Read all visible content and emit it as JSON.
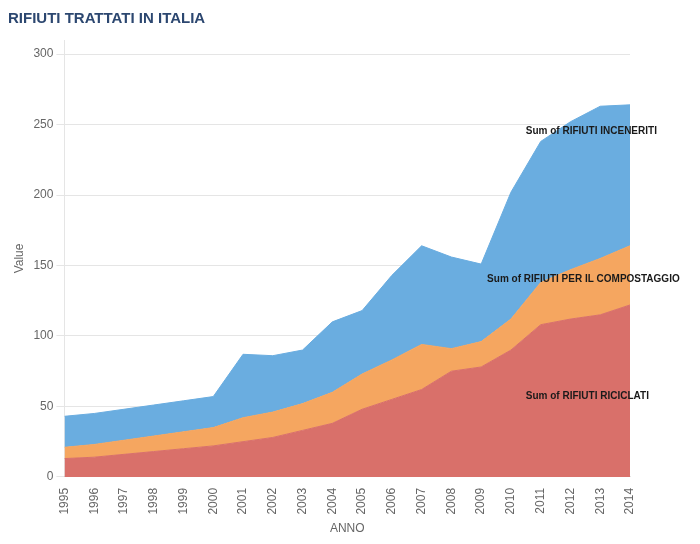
{
  "chart_data": {
    "type": "area",
    "title": "RIFIUTI TRATTATI IN ITALIA",
    "x_label": "ANNO",
    "y_label": "Value",
    "x": [
      1995,
      1996,
      1997,
      1998,
      1999,
      2000,
      2001,
      2002,
      2003,
      2004,
      2005,
      2006,
      2007,
      2008,
      2009,
      2010,
      2011,
      2012,
      2013,
      2014
    ],
    "series": [
      {
        "name": "Sum of RIFIUTI RICICLATI",
        "color": "#d9706a",
        "values": [
          13,
          14,
          16,
          18,
          20,
          22,
          25,
          28,
          33,
          38,
          48,
          55,
          62,
          75,
          78,
          90,
          108,
          112,
          115,
          122
        ]
      },
      {
        "name": "Sum of RIFIUTI PER IL COMPOSTAGGIO",
        "color": "#f5a660",
        "values": [
          8,
          9,
          10,
          11,
          12,
          13,
          17,
          18,
          19,
          22,
          25,
          28,
          32,
          16,
          18,
          22,
          30,
          35,
          40,
          42
        ]
      },
      {
        "name": "Sum of RIFIUTI INCENERITI",
        "color": "#6aade0",
        "values": [
          22,
          22,
          22,
          22,
          22,
          22,
          45,
          40,
          38,
          50,
          45,
          60,
          70,
          65,
          55,
          90,
          100,
          105,
          108,
          100
        ]
      }
    ],
    "stacked": true,
    "annotations": [
      {
        "text": "Sum of RIFIUTI INCENERITI",
        "x": 2010.5,
        "y": 245
      },
      {
        "text": "Sum of RIFIUTI PER IL COMPOSTAGGIO",
        "x": 2009.2,
        "y": 140
      },
      {
        "text": "Sum of RIFIUTI RICICLATI",
        "x": 2010.5,
        "y": 57
      }
    ],
    "xlim": [
      1995,
      2014
    ],
    "xticks": [
      1995,
      1996,
      1997,
      1998,
      1999,
      2000,
      2001,
      2002,
      2003,
      2004,
      2005,
      2006,
      2007,
      2008,
      2009,
      2010,
      2011,
      2012,
      2013,
      2014
    ],
    "ylim": [
      0,
      310
    ],
    "yticks": [
      0,
      50,
      100,
      150,
      200,
      250,
      300
    ],
    "grid": true
  }
}
